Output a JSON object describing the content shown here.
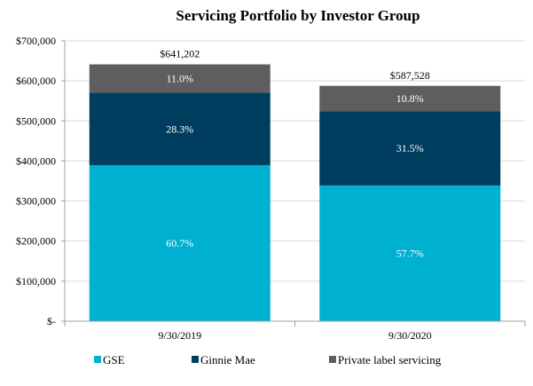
{
  "chart_data": {
    "type": "bar",
    "stacked": true,
    "title": "Servicing Portfolio by Investor Group",
    "xlabel": "",
    "ylabel": "",
    "ylim": [
      0,
      700000
    ],
    "yticks": [
      0,
      100000,
      200000,
      300000,
      400000,
      500000,
      600000,
      700000
    ],
    "ytick_labels": [
      "$-",
      "$100,000",
      "$200,000",
      "$300,000",
      "$400,000",
      "$500,000",
      "$600,000",
      "$700,000"
    ],
    "grid": true,
    "categories": [
      "9/30/2019",
      "9/30/2020"
    ],
    "totals": [
      641202,
      587528
    ],
    "total_labels": [
      "$641,202",
      "$587,528"
    ],
    "series": [
      {
        "name": "GSE",
        "color": "#00B0D0",
        "label_color": "#ffffff",
        "percents": [
          60.7,
          57.7
        ],
        "labels": [
          "60.7%",
          "57.7%"
        ]
      },
      {
        "name": "Ginnie Mae",
        "color": "#003E60",
        "label_color": "#ffffff",
        "percents": [
          28.3,
          31.5
        ],
        "labels": [
          "28.3%",
          "31.5%"
        ]
      },
      {
        "name": "Private label servicing",
        "color": "#5E5E5E",
        "label_color": "#ffffff",
        "percents": [
          11.0,
          10.8
        ],
        "labels": [
          "11.0%",
          "10.8%"
        ]
      }
    ],
    "legend_position": "bottom"
  }
}
